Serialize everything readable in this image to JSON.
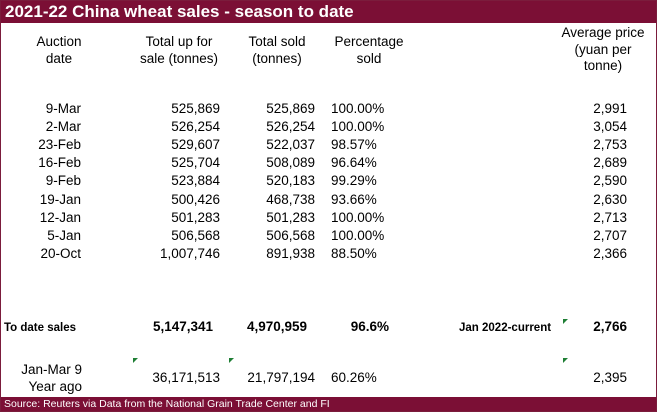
{
  "title": "2021-22 China wheat sales - season to date",
  "headers": {
    "auction_date": [
      "Auction",
      "date"
    ],
    "total_up": [
      "Total up for",
      "sale (tonnes)"
    ],
    "total_sold": [
      "Total sold",
      "(tonnes)"
    ],
    "percentage": [
      "Percentage",
      "sold"
    ],
    "avg_price": [
      "Average price",
      "(yuan per",
      "tonne)"
    ]
  },
  "rows": [
    {
      "date": "9-Mar",
      "up": "525,869",
      "sold": "525,869",
      "pct": "100.00%",
      "price": "2,991"
    },
    {
      "date": "2-Mar",
      "up": "526,254",
      "sold": "526,254",
      "pct": "100.00%",
      "price": "3,054"
    },
    {
      "date": "23-Feb",
      "up": "529,607",
      "sold": "522,037",
      "pct": "98.57%",
      "price": "2,753"
    },
    {
      "date": "16-Feb",
      "up": "525,704",
      "sold": "508,089",
      "pct": "96.64%",
      "price": "2,689"
    },
    {
      "date": "9-Feb",
      "up": "523,884",
      "sold": "520,183",
      "pct": "99.29%",
      "price": "2,590"
    },
    {
      "date": "19-Jan",
      "up": "500,426",
      "sold": "468,738",
      "pct": "93.66%",
      "price": "2,630"
    },
    {
      "date": "12-Jan",
      "up": "501,283",
      "sold": "501,283",
      "pct": "100.00%",
      "price": "2,713"
    },
    {
      "date": "5-Jan",
      "up": "506,568",
      "sold": "506,568",
      "pct": "100.00%",
      "price": "2,707"
    },
    {
      "date": "20-Oct",
      "up": "1,007,746",
      "sold": "891,938",
      "pct": "88.50%",
      "price": "2,366"
    }
  ],
  "totals": {
    "label": "To date sales",
    "up": "5,147,341",
    "sold": "4,970,959",
    "pct": "96.6%",
    "price_label": "Jan 2022-current",
    "price": "2,766"
  },
  "year_ago": {
    "label": [
      "Jan-Mar 9",
      "Year ago"
    ],
    "up": "36,171,513",
    "sold": "21,797,194",
    "pct": "60.26%",
    "price": "2,395"
  },
  "source": "Source: Reuters via Data from the National Grain Trade Center and FI",
  "colors": {
    "banner": "#7b0f35",
    "comment_flag": "#1e7e34"
  }
}
